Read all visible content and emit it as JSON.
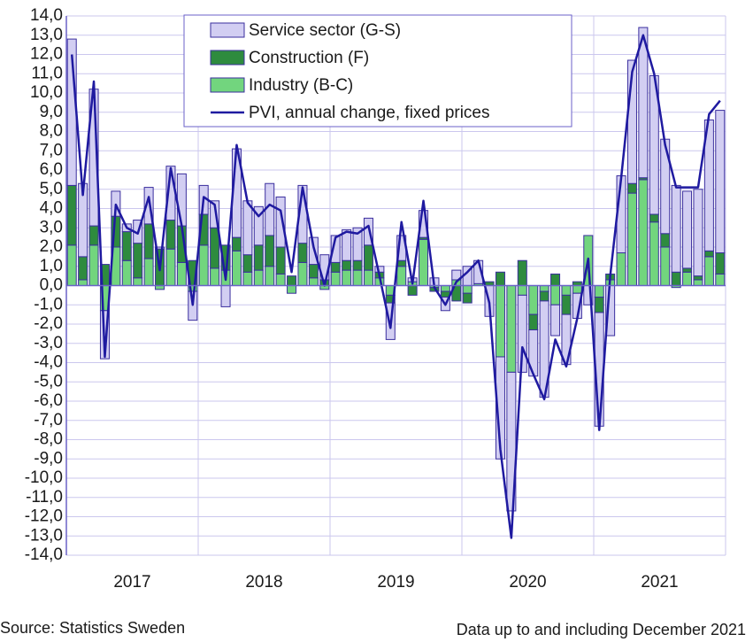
{
  "chart_data": {
    "type": "bar",
    "stacked": true,
    "categories": [
      null,
      null,
      null,
      null,
      null,
      null,
      "2017",
      null,
      null,
      null,
      null,
      null,
      null,
      null,
      null,
      null,
      null,
      null,
      "2018",
      null,
      null,
      null,
      null,
      null,
      null,
      null,
      null,
      null,
      null,
      null,
      "2019",
      null,
      null,
      null,
      null,
      null,
      null,
      null,
      null,
      null,
      null,
      null,
      "2020",
      null,
      null,
      null,
      null,
      null,
      null,
      null,
      null,
      null,
      null,
      null,
      "2021",
      null,
      null,
      null,
      null,
      null
    ],
    "series": [
      {
        "name": "Service sector (G-S)",
        "color": "#d2cef2",
        "values": [
          7.6,
          3.8,
          7.1,
          -2.5,
          1.3,
          0.4,
          1.2,
          1.9,
          0.1,
          2.8,
          2.7,
          -1.5,
          1.5,
          1.4,
          -1.1,
          4.6,
          2.8,
          2.0,
          2.7,
          2.6,
          0.0,
          3.0,
          1.4,
          1.3,
          1.4,
          1.6,
          1.7,
          1.4,
          0.3,
          -1.9,
          1.3,
          0.2,
          1.4,
          0.4,
          -0.7,
          0.5,
          1.0,
          1.2,
          -1.6,
          -5.3,
          -7.2,
          -4.0,
          -2.4,
          -5.0,
          -1.6,
          -2.6,
          -1.3,
          -1.0,
          -5.9,
          -2.6,
          4.0,
          6.4,
          7.8,
          7.2,
          4.9,
          4.5,
          4.0,
          4.5,
          6.8,
          7.4
        ]
      },
      {
        "name": "Construction (F)",
        "color": "#2e8b3e",
        "values": [
          3.1,
          1.2,
          1.0,
          1.1,
          1.6,
          1.5,
          1.8,
          1.8,
          1.9,
          1.5,
          1.9,
          1.3,
          1.6,
          2.1,
          1.3,
          0.7,
          0.9,
          1.3,
          1.6,
          1.4,
          0.5,
          1.0,
          0.7,
          0.3,
          0.5,
          0.5,
          0.5,
          1.3,
          0.3,
          -0.4,
          0.3,
          -0.5,
          0.1,
          -0.2,
          -0.3,
          -0.8,
          -0.5,
          0.0,
          0.2,
          0.7,
          0.0,
          1.3,
          -0.8,
          -0.5,
          0.6,
          -1.0,
          0.2,
          0.0,
          -0.8,
          0.3,
          0.0,
          0.5,
          0.1,
          0.4,
          0.7,
          0.7,
          0.2,
          0.2,
          0.3,
          1.1
        ]
      },
      {
        "name": "Industry (B-C)",
        "color": "#72d57e",
        "values": [
          2.1,
          0.3,
          2.1,
          -1.3,
          2.0,
          1.3,
          0.4,
          1.4,
          -0.2,
          1.9,
          1.2,
          -0.3,
          2.1,
          0.9,
          0.8,
          1.8,
          0.7,
          0.8,
          1.0,
          0.6,
          -0.4,
          1.2,
          0.4,
          -0.2,
          0.7,
          0.8,
          0.8,
          0.8,
          0.4,
          -0.5,
          1.0,
          0.2,
          2.4,
          -0.1,
          -0.3,
          0.3,
          -0.4,
          0.1,
          0.0,
          -3.7,
          -4.5,
          -0.5,
          -1.5,
          -0.3,
          -1.0,
          -0.5,
          -0.4,
          2.6,
          -0.6,
          0.3,
          1.7,
          4.8,
          5.5,
          3.3,
          2.0,
          -0.1,
          0.7,
          0.3,
          1.5,
          0.6
        ]
      },
      {
        "name": "PVI, annual change, fixed prices",
        "color": "#1f1aa0",
        "type": "line",
        "values": [
          12.0,
          4.7,
          10.6,
          -3.7,
          4.2,
          3.0,
          2.7,
          4.6,
          0.8,
          6.1,
          3.1,
          -1.0,
          4.6,
          4.2,
          0.3,
          7.3,
          4.3,
          3.6,
          4.2,
          3.9,
          0.7,
          5.1,
          2.0,
          0.0,
          2.5,
          2.8,
          2.7,
          3.1,
          0.5,
          -2.2,
          3.3,
          0.1,
          4.4,
          -0.1,
          -1.0,
          0.2,
          0.7,
          1.3,
          -0.9,
          -8.5,
          -13.1,
          -3.2,
          -4.6,
          -5.9,
          -2.8,
          -4.2,
          -1.7,
          1.4,
          -7.5,
          0.5,
          5.6,
          11.1,
          13.0,
          11.0,
          7.3,
          5.1,
          5.1,
          5.1,
          8.9,
          9.6
        ]
      }
    ],
    "ylim": [
      -14,
      14
    ],
    "yticks": [
      {
        "value": -14,
        "label": "-14,0"
      },
      {
        "value": -13,
        "label": "-13,0"
      },
      {
        "value": -12,
        "label": "-12,0"
      },
      {
        "value": -11,
        "label": "-11,0"
      },
      {
        "value": -10,
        "label": "-10,0"
      },
      {
        "value": -9,
        "label": "-9,0"
      },
      {
        "value": -8,
        "label": "-8,0"
      },
      {
        "value": -7,
        "label": "-7,0"
      },
      {
        "value": -6,
        "label": "-6,0"
      },
      {
        "value": -5,
        "label": "-5,0"
      },
      {
        "value": -4,
        "label": "-4,0"
      },
      {
        "value": -3,
        "label": "-3,0"
      },
      {
        "value": -2,
        "label": "-2,0"
      },
      {
        "value": -1,
        "label": "-1,0"
      },
      {
        "value": 0,
        "label": "0,0"
      },
      {
        "value": 1,
        "label": "1,0"
      },
      {
        "value": 2,
        "label": "2,0"
      },
      {
        "value": 3,
        "label": "3,0"
      },
      {
        "value": 4,
        "label": "4,0"
      },
      {
        "value": 5,
        "label": "5,0"
      },
      {
        "value": 6,
        "label": "6,0"
      },
      {
        "value": 7,
        "label": "7,0"
      },
      {
        "value": 8,
        "label": "8,0"
      },
      {
        "value": 9,
        "label": "9,0"
      },
      {
        "value": 10,
        "label": "10,0"
      },
      {
        "value": 11,
        "label": "11,0"
      },
      {
        "value": 12,
        "label": "12,0"
      },
      {
        "value": 13,
        "label": "13,0"
      },
      {
        "value": 14,
        "label": "14,0"
      }
    ],
    "grid": true,
    "legend": "top",
    "source": "Source: Statistics Sweden",
    "note": "Data up to and including December 2021"
  }
}
